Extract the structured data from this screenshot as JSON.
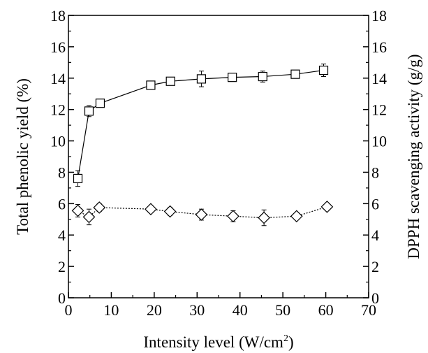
{
  "chart_data": {
    "type": "scatter",
    "xlabel": "Intensity level (W/cm",
    "xlabel_sup": "2",
    "xlabel_end": ")",
    "ylabel_left": "Total phenolic yield (%)",
    "ylabel_right": "DPPH scavenging activity (g/g)",
    "xlim": [
      0,
      70
    ],
    "ylim_left": [
      0,
      18
    ],
    "ylim_right": [
      0,
      18
    ],
    "x_ticks": [
      "0",
      "10",
      "20",
      "30",
      "40",
      "50",
      "60",
      "70"
    ],
    "y_ticks": [
      "0",
      "2",
      "4",
      "6",
      "8",
      "10",
      "12",
      "14",
      "16",
      "18"
    ],
    "grid": false,
    "legend": "none",
    "series": [
      {
        "marker": "square",
        "line": "solid",
        "axis": "left",
        "x": [
          2.2,
          4.8,
          7.4,
          19.2,
          23.8,
          31.0,
          38.2,
          45.3,
          52.9,
          59.5
        ],
        "y": [
          7.6,
          11.9,
          12.4,
          13.55,
          13.8,
          13.95,
          14.05,
          14.1,
          14.25,
          14.5
        ],
        "err": [
          0.5,
          0.35,
          0.1,
          0.25,
          0.1,
          0.5,
          0.25,
          0.35,
          0.25,
          0.4
        ]
      },
      {
        "marker": "diamond",
        "line": "dotted",
        "axis": "right",
        "x": [
          2.2,
          4.8,
          7.2,
          19.2,
          23.7,
          31.0,
          38.4,
          45.6,
          53.2,
          60.3
        ],
        "y": [
          5.55,
          5.15,
          5.75,
          5.65,
          5.5,
          5.3,
          5.2,
          5.1,
          5.2,
          5.8
        ],
        "err": [
          0.4,
          0.5,
          0.25,
          0.2,
          0.25,
          0.35,
          0.35,
          0.5,
          0.15,
          0.2
        ]
      }
    ]
  }
}
